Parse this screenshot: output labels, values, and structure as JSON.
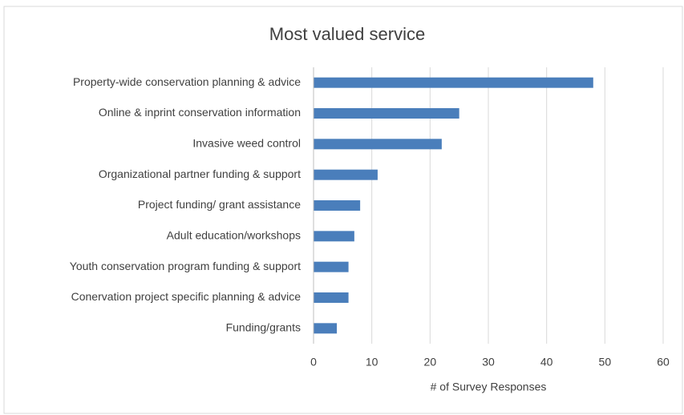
{
  "chart_data": {
    "type": "bar",
    "orientation": "horizontal",
    "title": "Most valued service",
    "categories": [
      "Property-wide conservation planning & advice",
      "Online & inprint conservation information",
      "Invasive weed control",
      "Organizational partner funding & support",
      "Project funding/ grant assistance",
      "Adult education/workshops",
      "Youth conservation program funding & support",
      "Conervation project specific planning & advice",
      "Funding/grants"
    ],
    "values": [
      48,
      25,
      22,
      11,
      8,
      7,
      6,
      6,
      4
    ],
    "color": "#4a7ebb",
    "xlabel": "# of Survey Responses",
    "xlim": [
      0,
      60
    ],
    "xticks": [
      0,
      10,
      20,
      30,
      40,
      50,
      60
    ],
    "grid": true
  }
}
